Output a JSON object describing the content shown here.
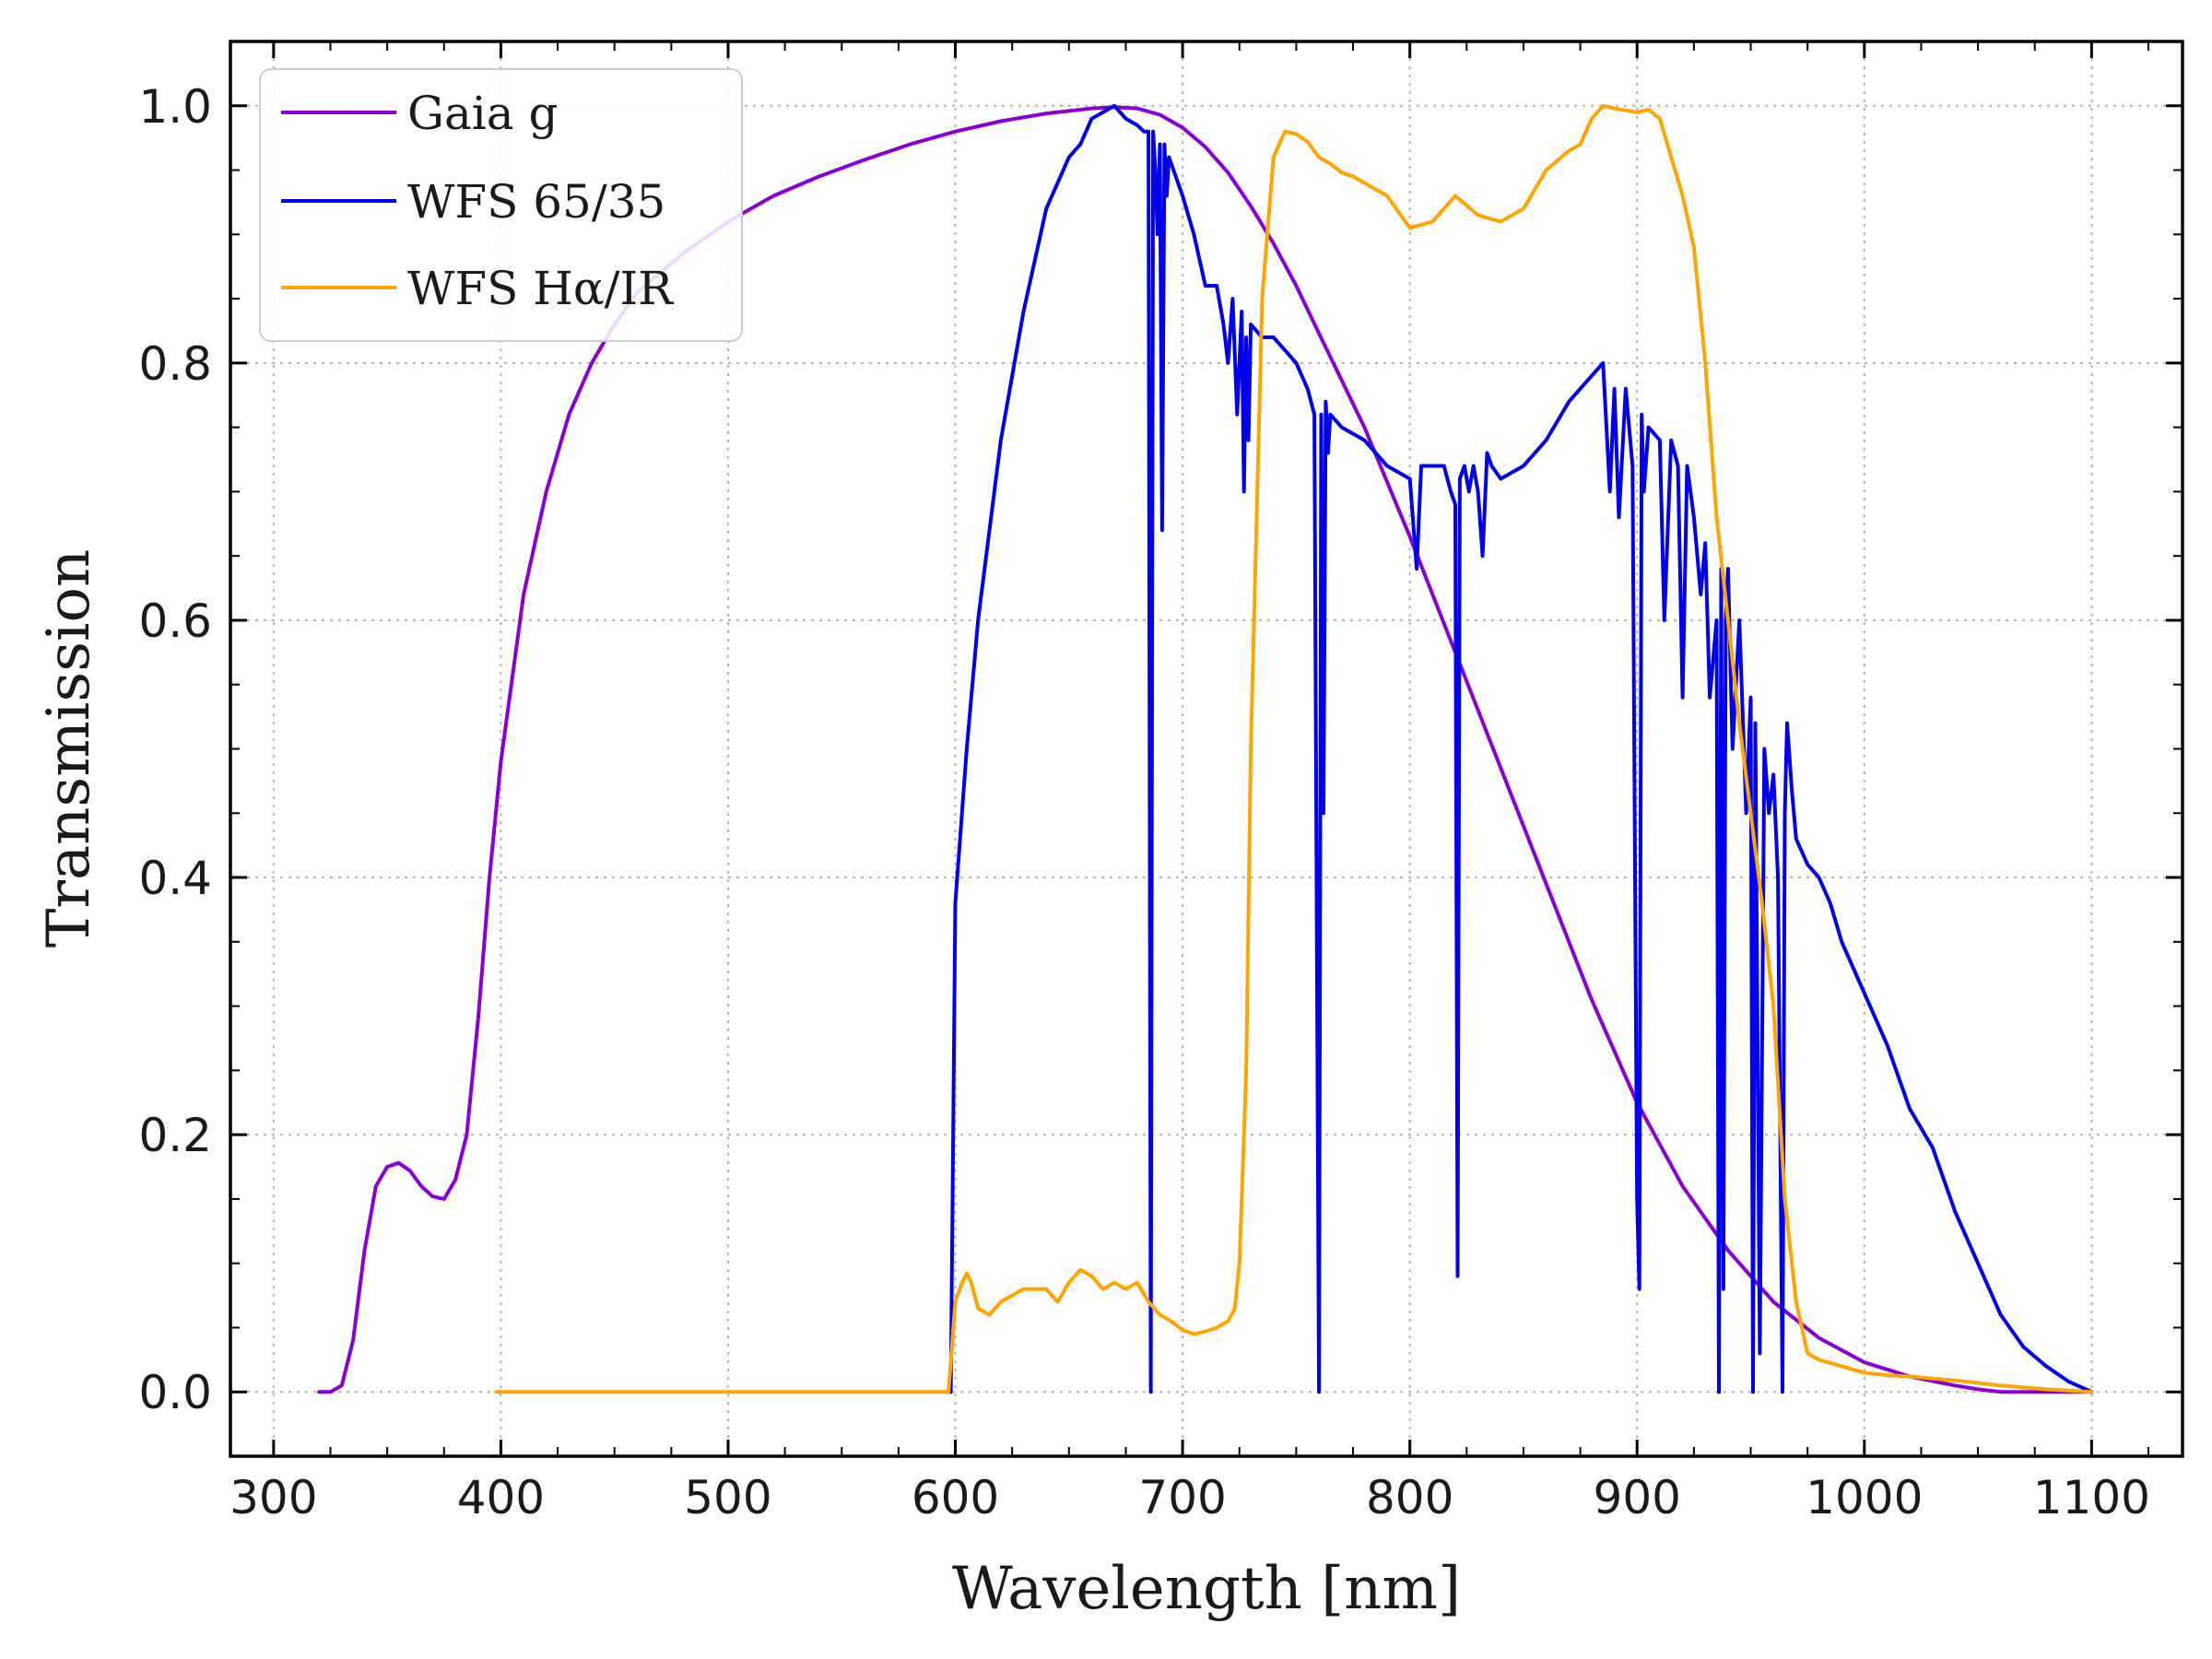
{
  "chart_data": {
    "type": "line",
    "xlabel": "Wavelength [nm]",
    "ylabel": "Transmission",
    "xlim": [
      281,
      1140
    ],
    "ylim": [
      -0.05,
      1.05
    ],
    "xticks": [
      300,
      400,
      500,
      600,
      700,
      800,
      900,
      1000,
      1100
    ],
    "xtick_labels": [
      "300",
      "400",
      "500",
      "600",
      "700",
      "800",
      "900",
      "1000",
      "1100"
    ],
    "yticks": [
      0.0,
      0.2,
      0.4,
      0.6,
      0.8,
      1.0
    ],
    "ytick_labels": [
      "0.0",
      "0.2",
      "0.4",
      "0.6",
      "0.8",
      "1.0"
    ],
    "grid": true,
    "legend_position": "top-left",
    "series": [
      {
        "name": "Gaia g",
        "color": "#8a00d4",
        "x": [
          320,
          325,
          330,
          335,
          340,
          345,
          350,
          355,
          360,
          365,
          370,
          375,
          380,
          385,
          390,
          395,
          400,
          410,
          420,
          430,
          440,
          450,
          460,
          480,
          500,
          520,
          540,
          560,
          580,
          600,
          620,
          640,
          660,
          670,
          680,
          690,
          700,
          710,
          720,
          730,
          740,
          750,
          760,
          780,
          800,
          820,
          840,
          860,
          880,
          900,
          920,
          940,
          960,
          980,
          1000,
          1020,
          1040,
          1050,
          1060,
          1080,
          1100
        ],
        "y": [
          0.0,
          0.0,
          0.005,
          0.04,
          0.11,
          0.16,
          0.175,
          0.178,
          0.172,
          0.16,
          0.152,
          0.15,
          0.165,
          0.2,
          0.29,
          0.4,
          0.49,
          0.62,
          0.7,
          0.76,
          0.8,
          0.83,
          0.855,
          0.885,
          0.91,
          0.93,
          0.945,
          0.958,
          0.97,
          0.98,
          0.988,
          0.994,
          0.998,
          0.999,
          0.998,
          0.993,
          0.983,
          0.968,
          0.948,
          0.922,
          0.893,
          0.86,
          0.823,
          0.75,
          0.665,
          0.575,
          0.485,
          0.395,
          0.305,
          0.225,
          0.16,
          0.11,
          0.07,
          0.042,
          0.023,
          0.012,
          0.005,
          0.002,
          0.0,
          0.0,
          0.0
        ]
      },
      {
        "name": "WFS 65/35",
        "color": "#0000ee",
        "x": [
          596,
          598,
          600,
          605,
          610,
          620,
          630,
          640,
          650,
          655,
          660,
          665,
          670,
          675,
          680,
          683,
          685,
          686,
          687,
          688,
          689,
          690,
          691,
          692,
          693,
          694,
          700,
          705,
          710,
          715,
          718,
          720,
          722,
          724,
          726,
          727,
          728,
          729,
          730,
          735,
          740,
          745,
          750,
          755,
          758,
          760,
          761,
          762,
          763,
          764,
          765,
          770,
          780,
          790,
          800,
          803,
          805,
          810,
          815,
          818,
          820,
          821,
          822,
          824,
          826,
          828,
          830,
          832,
          834,
          836,
          840,
          850,
          860,
          870,
          880,
          885,
          888,
          890,
          892,
          895,
          898,
          900,
          901,
          902,
          903,
          905,
          910,
          912,
          915,
          918,
          920,
          922,
          925,
          928,
          930,
          932,
          935,
          936,
          937,
          938,
          939,
          940,
          942,
          945,
          948,
          950,
          951,
          952,
          954,
          956,
          958,
          960,
          962,
          964,
          965,
          966,
          968,
          970,
          975,
          980,
          985,
          990,
          1000,
          1010,
          1020,
          1030,
          1040,
          1050,
          1060,
          1070,
          1080,
          1090,
          1100
        ],
        "y": [
          0.0,
          0.0,
          0.38,
          0.5,
          0.6,
          0.74,
          0.84,
          0.92,
          0.96,
          0.97,
          0.99,
          0.995,
          1.0,
          0.99,
          0.985,
          0.98,
          0.98,
          0.0,
          0.98,
          0.95,
          0.9,
          0.97,
          0.67,
          0.97,
          0.93,
          0.96,
          0.93,
          0.9,
          0.86,
          0.86,
          0.83,
          0.8,
          0.85,
          0.76,
          0.84,
          0.7,
          0.82,
          0.74,
          0.83,
          0.82,
          0.82,
          0.81,
          0.8,
          0.78,
          0.76,
          0.0,
          0.76,
          0.45,
          0.77,
          0.73,
          0.76,
          0.75,
          0.74,
          0.72,
          0.71,
          0.64,
          0.72,
          0.72,
          0.72,
          0.7,
          0.69,
          0.09,
          0.71,
          0.72,
          0.7,
          0.72,
          0.7,
          0.65,
          0.73,
          0.72,
          0.71,
          0.72,
          0.74,
          0.77,
          0.79,
          0.8,
          0.7,
          0.78,
          0.68,
          0.78,
          0.72,
          0.15,
          0.08,
          0.76,
          0.7,
          0.75,
          0.74,
          0.6,
          0.74,
          0.72,
          0.54,
          0.72,
          0.68,
          0.62,
          0.66,
          0.54,
          0.6,
          0.0,
          0.64,
          0.08,
          0.6,
          0.64,
          0.5,
          0.6,
          0.45,
          0.54,
          0.0,
          0.52,
          0.03,
          0.5,
          0.45,
          0.48,
          0.4,
          0.0,
          0.45,
          0.52,
          0.47,
          0.43,
          0.41,
          0.4,
          0.38,
          0.35,
          0.31,
          0.27,
          0.22,
          0.19,
          0.14,
          0.1,
          0.06,
          0.035,
          0.02,
          0.008,
          0.0
        ]
      },
      {
        "name": "WFS Hα/IR",
        "color": "#ffa500",
        "x": [
          398,
          500,
          597,
          600,
          603,
          605,
          607,
          610,
          615,
          620,
          630,
          640,
          645,
          650,
          655,
          660,
          665,
          670,
          675,
          680,
          685,
          690,
          695,
          700,
          705,
          710,
          715,
          720,
          723,
          725,
          728,
          730,
          735,
          740,
          745,
          750,
          755,
          760,
          765,
          770,
          775,
          780,
          785,
          790,
          800,
          810,
          820,
          830,
          840,
          850,
          860,
          870,
          875,
          880,
          885,
          890,
          900,
          905,
          910,
          915,
          920,
          925,
          930,
          935,
          940,
          945,
          950,
          955,
          960,
          965,
          970,
          975,
          980,
          990,
          1000,
          1010,
          1020,
          1040,
          1060,
          1080,
          1100
        ],
        "y": [
          0.0,
          0.0,
          0.0,
          0.07,
          0.085,
          0.092,
          0.085,
          0.065,
          0.06,
          0.07,
          0.08,
          0.08,
          0.07,
          0.085,
          0.095,
          0.09,
          0.08,
          0.085,
          0.08,
          0.085,
          0.07,
          0.06,
          0.055,
          0.048,
          0.045,
          0.047,
          0.05,
          0.055,
          0.065,
          0.1,
          0.25,
          0.5,
          0.85,
          0.96,
          0.98,
          0.978,
          0.972,
          0.96,
          0.955,
          0.948,
          0.945,
          0.94,
          0.935,
          0.93,
          0.905,
          0.91,
          0.93,
          0.915,
          0.91,
          0.92,
          0.95,
          0.965,
          0.97,
          0.99,
          1.0,
          0.998,
          0.995,
          0.997,
          0.99,
          0.96,
          0.93,
          0.89,
          0.8,
          0.68,
          0.6,
          0.52,
          0.45,
          0.38,
          0.3,
          0.15,
          0.07,
          0.03,
          0.025,
          0.02,
          0.015,
          0.013,
          0.012,
          0.009,
          0.005,
          0.002,
          0.0
        ]
      }
    ]
  }
}
